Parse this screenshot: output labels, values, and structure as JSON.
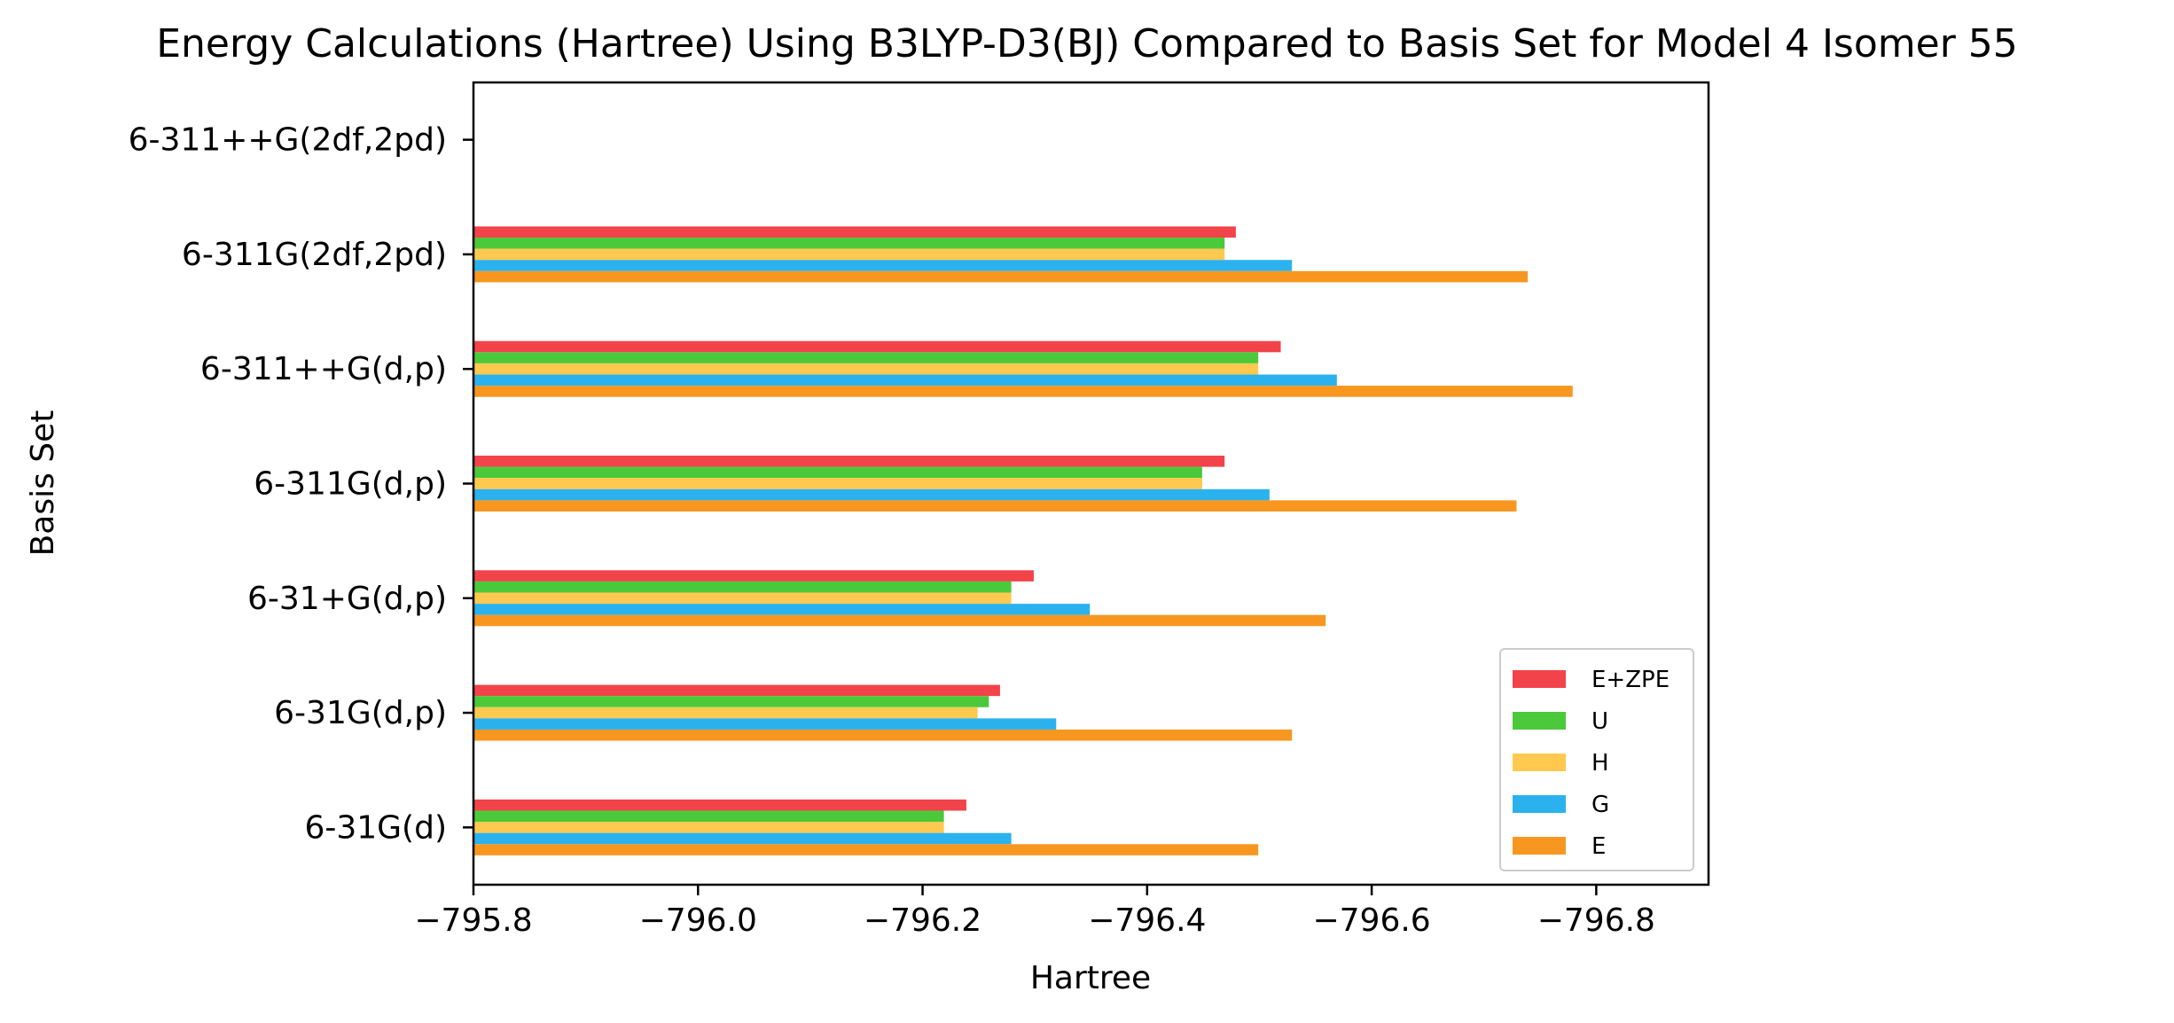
{
  "chart_data": {
    "type": "bar",
    "orientation": "horizontal",
    "title": "Energy Calculations (Hartree) Using B3LYP-D3(BJ) Compared to Basis Set for Model 4 Isomer 55",
    "xlabel": "Hartree",
    "ylabel": "Basis Set",
    "categories": [
      "6-31G(d)",
      "6-31G(d,p)",
      "6-31+G(d,p)",
      "6-311G(d,p)",
      "6-311++G(d,p)",
      "6-311G(2df,2pd)",
      "6-311++G(2df,2pd)"
    ],
    "xlim": [
      -795.8,
      -796.9
    ],
    "x_axis_inverted": true,
    "xticks": [
      -795.8,
      -796.0,
      -796.2,
      -796.4,
      -796.6,
      -796.8
    ],
    "xtick_labels": [
      "−795.8",
      "−796.0",
      "−796.2",
      "−796.4",
      "−796.6",
      "−796.8"
    ],
    "grid": false,
    "legend_position": "lower-right",
    "series": [
      {
        "name": "E+ZPE",
        "color": "#f2434a",
        "values": [
          -796.239,
          -796.269,
          -796.299,
          -796.469,
          -796.519,
          -796.479,
          null
        ]
      },
      {
        "name": "U",
        "color": "#4bc93a",
        "values": [
          -796.219,
          -796.259,
          -796.279,
          -796.449,
          -796.499,
          -796.469,
          null
        ]
      },
      {
        "name": "H",
        "color": "#ffc94f",
        "values": [
          -796.219,
          -796.249,
          -796.279,
          -796.449,
          -796.499,
          -796.469,
          null
        ]
      },
      {
        "name": "G",
        "color": "#2bb2ee",
        "values": [
          -796.279,
          -796.319,
          -796.349,
          -796.509,
          -796.569,
          -796.529,
          null
        ]
      },
      {
        "name": "E",
        "color": "#f7971f",
        "values": [
          -796.499,
          -796.529,
          -796.559,
          -796.729,
          -796.779,
          -796.739,
          null
        ]
      }
    ]
  }
}
